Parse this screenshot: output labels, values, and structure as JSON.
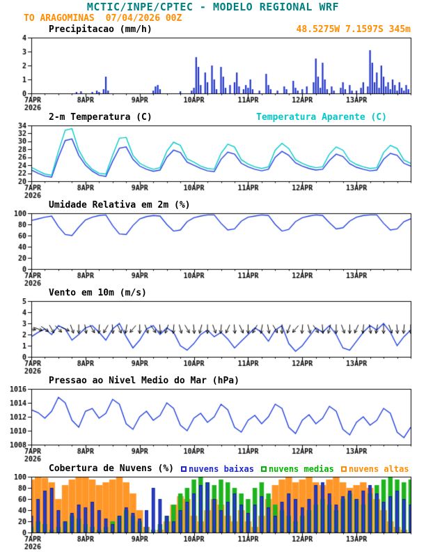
{
  "header": {
    "title": "MCTIC/INPE/CPTEC - MODELO REGIONAL WRF",
    "location": "TO ARAGOMINAS",
    "run": "07/04/2026 00Z",
    "coords": "48.5275W 7.1597S 345m"
  },
  "colors": {
    "header": "#008080",
    "orange": "#ff8c00",
    "axis": "#000000",
    "line_blue": "#2040e0",
    "cyan": "#00c8c8",
    "green": "#1eb41e"
  },
  "panels_meta": [
    {
      "title": "Precipitacao (mm/h)"
    },
    {
      "title": "2-m Temperatura (C)",
      "extra": "Temperatura Aparente (C)"
    },
    {
      "title": "Umidade Relativa em 2m (%)"
    },
    {
      "title": "Vento em 10m (m/s)"
    },
    {
      "title": "Pressao ao Nivel Medio do Mar (hPa)"
    },
    {
      "title": "Cobertura de Nuvens (%)",
      "legend": [
        {
          "label": "nuvens baixas",
          "color": "#1e28d2"
        },
        {
          "label": "nuvens medias",
          "color": "#00b400"
        },
        {
          "label": "nuvens altas",
          "color": "#ff8c00"
        }
      ]
    }
  ],
  "chart_data": {
    "type": "meteogram",
    "x_axis": {
      "tmin": 0,
      "tmax": 168,
      "unit": "hours since 07APR2026 00Z",
      "major_ticks": [
        0,
        24,
        48,
        72,
        96,
        120,
        144
      ],
      "minor_step": 6,
      "labels": [
        {
          "t": 0,
          "lines": [
            "7APR",
            "2026"
          ]
        },
        {
          "t": 24,
          "lines": [
            "8APR"
          ]
        },
        {
          "t": 48,
          "lines": [
            "9APR"
          ]
        },
        {
          "t": 72,
          "lines": [
            "10APR"
          ]
        },
        {
          "t": 96,
          "lines": [
            "11APR"
          ]
        },
        {
          "t": 120,
          "lines": [
            "12APR"
          ]
        },
        {
          "t": 144,
          "lines": [
            "13APR"
          ]
        }
      ]
    },
    "panels": [
      {
        "id": "precip",
        "title": "Precipitacao (mm/h)",
        "type": "bar",
        "ylim": [
          0,
          4
        ],
        "yticks": [
          0,
          1,
          2,
          3,
          4
        ],
        "dt": 1,
        "bar_color": "#1e32c8",
        "values": [
          0,
          0,
          0,
          0,
          0,
          0,
          0,
          0,
          0,
          0,
          0,
          0,
          0,
          0,
          0,
          0,
          0,
          0,
          0,
          0,
          0.1,
          0,
          0.15,
          0,
          0,
          0,
          0,
          0.1,
          0,
          0.2,
          0.1,
          0,
          0.3,
          1.2,
          0.2,
          0,
          0,
          0,
          0,
          0,
          0,
          0,
          0,
          0,
          0,
          0,
          0,
          0,
          0,
          0,
          0,
          0,
          0,
          0,
          0.2,
          0.5,
          0.6,
          0.3,
          0,
          0,
          0,
          0,
          0,
          0,
          0,
          0,
          0.15,
          0,
          0,
          0,
          0,
          0.2,
          0.4,
          2.6,
          1.9,
          0.6,
          0,
          1.5,
          0.8,
          0,
          2.0,
          1.0,
          0.3,
          0,
          1.9,
          1.2,
          0.4,
          0,
          0.6,
          0,
          0.8,
          1.5,
          0.5,
          0,
          0.3,
          0.6,
          0.4,
          1.0,
          0.3,
          0,
          0,
          0.2,
          0,
          0,
          1.4,
          0.6,
          0.3,
          0,
          0,
          0.2,
          0,
          0,
          0.5,
          0.3,
          0,
          0,
          0.9,
          0.4,
          0.2,
          0,
          0.3,
          0,
          0.5,
          0,
          0,
          0.8,
          2.5,
          1.2,
          0.4,
          2.2,
          1.0,
          0.3,
          0,
          0.5,
          0.2,
          0,
          0,
          0.4,
          0.8,
          0.3,
          0,
          0.6,
          0.2,
          0,
          0.2,
          0,
          0.4,
          0.8,
          0,
          0.5,
          3.1,
          2.2,
          0.8,
          1.5,
          0.4,
          2.0,
          1.2,
          0.5,
          0.8,
          0.3,
          1.0,
          0.6,
          0.2,
          0.8,
          0.4,
          0.2,
          0.6,
          0.3
        ]
      },
      {
        "id": "temp",
        "title": "2-m Temperatura (C)",
        "type": "line",
        "ylim": [
          20,
          34
        ],
        "yticks": [
          20,
          22,
          24,
          26,
          28,
          30,
          32,
          34
        ],
        "dt": 3,
        "series": [
          {
            "name": "2-m Temperatura (C)",
            "color": "#2040e0",
            "values": [
              22.8,
              22.0,
              21.3,
              21.0,
              26.0,
              30.2,
              30.6,
              26.5,
              24.0,
              22.5,
              21.5,
              21.2,
              25.0,
              28.3,
              28.6,
              25.5,
              23.8,
              23.0,
              22.5,
              22.8,
              26.0,
              27.8,
              27.2,
              24.8,
              24.0,
              23.2,
              22.6,
              22.4,
              25.5,
              27.3,
              26.8,
              24.5,
              23.6,
              23.0,
              22.6,
              23.0,
              26.0,
              27.5,
              26.5,
              24.6,
              23.8,
              23.2,
              22.8,
              23.0,
              25.2,
              26.8,
              26.2,
              24.4,
              23.5,
              23.0,
              22.6,
              22.8,
              25.5,
              27.0,
              26.5,
              24.5,
              23.8
            ]
          },
          {
            "name": "Temperatura Aparente (C)",
            "color": "#00c8c8",
            "values": [
              23.5,
              22.6,
              21.8,
              21.5,
              27.5,
              32.8,
              33.2,
              27.8,
              24.8,
              23.0,
              22.0,
              21.8,
              26.5,
              30.8,
              31.0,
              26.5,
              24.5,
              23.6,
              23.0,
              23.4,
              27.5,
              29.8,
              29.0,
              25.6,
              24.8,
              23.8,
              23.2,
              23.0,
              27.0,
              29.3,
              28.6,
              25.4,
              24.3,
              23.6,
              23.2,
              23.6,
              27.8,
              29.5,
              28.2,
              25.4,
              24.5,
              23.8,
              23.4,
              23.6,
              26.8,
              28.6,
              27.8,
              25.2,
              24.2,
              23.6,
              23.2,
              23.4,
              27.2,
              29.0,
              28.2,
              25.3,
              24.5
            ]
          }
        ]
      },
      {
        "id": "rh",
        "title": "Umidade Relativa em 2m (%)",
        "type": "line",
        "ylim": [
          0,
          100
        ],
        "yticks": [
          0,
          20,
          40,
          60,
          80,
          100
        ],
        "dt": 3,
        "series": [
          {
            "name": "Umidade Relativa",
            "color": "#2040e0",
            "values": [
              87,
              90,
              93,
              95,
              76,
              62,
              60,
              75,
              88,
              93,
              96,
              97,
              78,
              63,
              62,
              78,
              90,
              94,
              96,
              95,
              80,
              68,
              70,
              85,
              92,
              95,
              97,
              97,
              82,
              70,
              72,
              86,
              93,
              95,
              97,
              96,
              80,
              68,
              71,
              85,
              92,
              95,
              97,
              96,
              83,
              72,
              74,
              86,
              93,
              96,
              97,
              97,
              82,
              70,
              72,
              85,
              90
            ]
          }
        ]
      },
      {
        "id": "wind",
        "title": "Vento em 10m (m/s)",
        "type": "line+arrows",
        "ylim": [
          0,
          5
        ],
        "yticks": [
          0,
          1,
          2,
          3,
          4,
          5
        ],
        "dt": 3,
        "arrow_y": 2.5,
        "arrow_color": "#000000",
        "series": [
          {
            "name": "Vento em 10m",
            "color": "#2040e0",
            "values": [
              1.8,
              2.2,
              2.5,
              2.0,
              2.8,
              2.5,
              1.5,
              2.0,
              2.6,
              2.8,
              2.2,
              1.5,
              2.5,
              3.0,
              1.8,
              0.8,
              1.5,
              2.5,
              2.8,
              2.0,
              2.6,
              2.2,
              1.0,
              0.6,
              1.2,
              2.0,
              2.4,
              1.8,
              2.2,
              1.6,
              0.8,
              1.4,
              2.0,
              2.6,
              2.2,
              1.4,
              2.4,
              2.8,
              1.2,
              0.5,
              1.0,
              1.8,
              2.6,
              2.2,
              2.8,
              2.0,
              0.8,
              0.6,
              1.4,
              2.2,
              2.8,
              2.4,
              3.0,
              2.2,
              1.0,
              1.8,
              2.4
            ]
          }
        ],
        "arrow_angles_deg": [
          -10,
          -20,
          -35,
          -60,
          -45,
          -25,
          -70,
          -90,
          -80,
          -60,
          -95,
          -120,
          -85,
          -65,
          -100,
          -130,
          -90,
          -70,
          -55,
          -85,
          -110,
          -95,
          -75,
          -60,
          -85,
          -105,
          -90,
          -70,
          -95,
          -115,
          -85,
          -65,
          -90,
          -120,
          -100,
          -80,
          -60,
          -90,
          -110,
          -130,
          -95,
          -75,
          -55,
          -85,
          -105,
          -90,
          -70,
          -90,
          -115,
          -95,
          -80,
          -100,
          -90,
          -70,
          -85,
          -95,
          -90
        ]
      },
      {
        "id": "pressure",
        "title": "Pressao ao Nivel Medio do Mar (hPa)",
        "type": "line",
        "ylim": [
          1008,
          1016
        ],
        "yticks": [
          1008,
          1010,
          1012,
          1014,
          1016
        ],
        "dt": 3,
        "series": [
          {
            "name": "Pressao ao Nivel Medio do Mar",
            "color": "#2040e0",
            "values": [
              1013.0,
              1012.6,
              1011.8,
              1012.8,
              1014.8,
              1014.0,
              1011.5,
              1010.5,
              1012.8,
              1013.2,
              1011.8,
              1012.5,
              1014.5,
              1013.8,
              1011.0,
              1010.2,
              1012.0,
              1012.8,
              1011.5,
              1012.2,
              1014.0,
              1013.2,
              1010.8,
              1010.0,
              1011.8,
              1012.5,
              1011.2,
              1012.0,
              1013.8,
              1013.0,
              1010.5,
              1009.8,
              1011.5,
              1012.2,
              1011.0,
              1012.0,
              1013.8,
              1013.2,
              1010.5,
              1009.6,
              1011.5,
              1012.3,
              1011.0,
              1011.8,
              1013.5,
              1012.8,
              1010.2,
              1009.4,
              1011.2,
              1012.0,
              1010.8,
              1011.5,
              1013.2,
              1012.5,
              1009.8,
              1009.0,
              1010.5
            ]
          }
        ]
      },
      {
        "id": "clouds",
        "title": "Cobertura de Nuvens (%)",
        "type": "bar-multi",
        "ylim": [
          0,
          100
        ],
        "yticks": [
          0,
          20,
          40,
          60,
          80,
          100
        ],
        "dt": 3,
        "series": [
          {
            "name": "nuvens altas",
            "color": "#ff9628",
            "width": 9.5,
            "values": [
              95,
              100,
              98,
              90,
              60,
              85,
              95,
              100,
              100,
              95,
              85,
              90,
              95,
              100,
              90,
              70,
              40,
              10,
              0,
              5,
              20,
              50,
              65,
              60,
              30,
              20,
              40,
              60,
              50,
              30,
              20,
              40,
              20,
              10,
              30,
              60,
              85,
              95,
              100,
              90,
              95,
              100,
              90,
              85,
              95,
              100,
              90,
              80,
              85,
              90,
              80,
              60,
              40,
              20,
              10,
              5,
              0
            ]
          },
          {
            "name": "nuvens medias",
            "color": "#1eb41e",
            "width": 6.5,
            "values": [
              10,
              20,
              15,
              5,
              10,
              20,
              30,
              25,
              15,
              10,
              5,
              10,
              20,
              30,
              40,
              30,
              20,
              10,
              5,
              15,
              30,
              50,
              70,
              80,
              95,
              100,
              90,
              85,
              95,
              90,
              80,
              70,
              60,
              80,
              90,
              70,
              50,
              40,
              30,
              20,
              30,
              40,
              50,
              60,
              50,
              40,
              60,
              70,
              60,
              50,
              70,
              85,
              95,
              100,
              95,
              90,
              95
            ]
          },
          {
            "name": "nuvens baixas",
            "color": "#2840d2",
            "stroke": "#101e8c",
            "width": 4.5,
            "values": [
              30,
              60,
              75,
              80,
              40,
              20,
              35,
              50,
              45,
              55,
              40,
              25,
              15,
              30,
              45,
              35,
              25,
              40,
              80,
              60,
              30,
              20,
              40,
              55,
              70,
              85,
              90,
              60,
              40,
              55,
              70,
              50,
              35,
              50,
              65,
              45,
              30,
              55,
              70,
              60,
              45,
              60,
              85,
              90,
              70,
              50,
              65,
              75,
              60,
              75,
              85,
              70,
              55,
              65,
              75,
              60,
              50
            ]
          }
        ]
      }
    ]
  }
}
